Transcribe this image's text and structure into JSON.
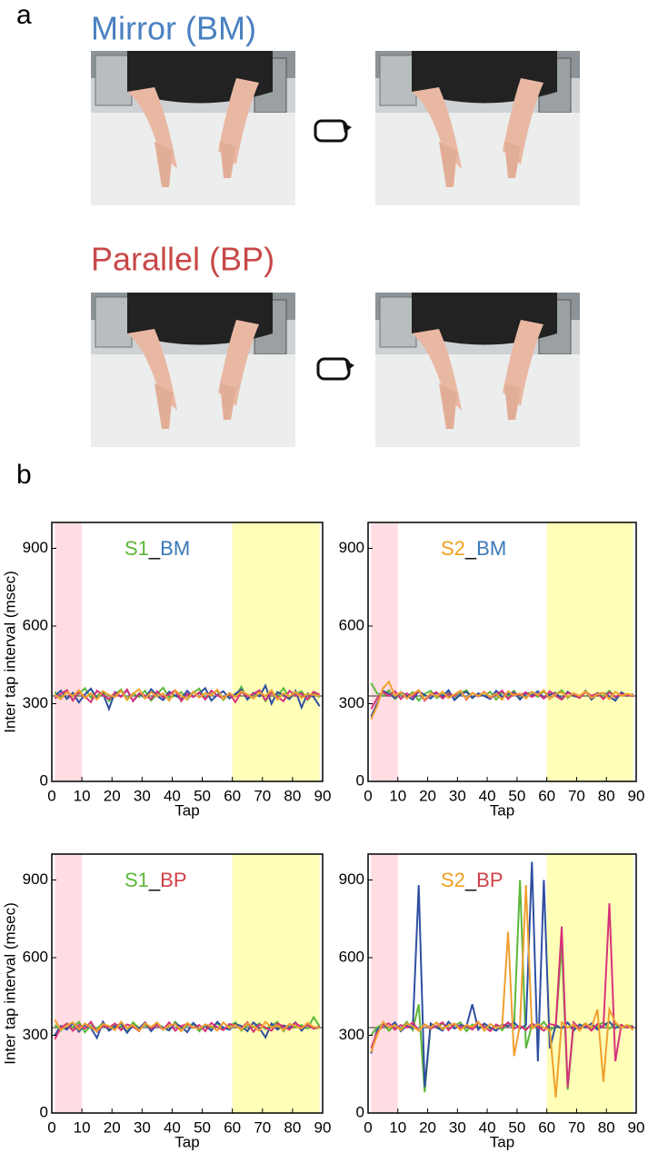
{
  "panel_a": {
    "label": "a",
    "conditions": [
      "Mirror (BM)",
      "Parallel (BP)"
    ]
  },
  "panel_b": {
    "label": "b"
  },
  "chart_data": [
    {
      "type": "line",
      "title": [
        {
          "text": "S1",
          "color": "#5cb83a"
        },
        {
          "text": "_",
          "color": "#000000"
        },
        {
          "text": "BM",
          "color": "#3a78b8"
        }
      ],
      "xlabel": "Tap",
      "ylabel": "Inter tap interval (msec)",
      "xlim": [
        0,
        90
      ],
      "xticks": [
        0,
        10,
        20,
        30,
        40,
        50,
        60,
        70,
        80,
        90
      ],
      "ylim": [
        0,
        1000
      ],
      "yticks": [
        0,
        300,
        600,
        900
      ],
      "ref_line": 330,
      "bands": [
        {
          "from": 1,
          "to": 10,
          "color": "#ffdde2"
        },
        {
          "from": 60,
          "to": 89,
          "color": "#ffffb8"
        }
      ],
      "x": [
        1,
        3,
        5,
        7,
        9,
        11,
        13,
        15,
        17,
        19,
        21,
        23,
        25,
        27,
        29,
        31,
        33,
        35,
        37,
        39,
        41,
        43,
        45,
        47,
        49,
        51,
        53,
        55,
        57,
        59,
        61,
        63,
        65,
        67,
        69,
        71,
        73,
        75,
        77,
        79,
        81,
        83,
        85,
        87,
        89
      ],
      "series": [
        {
          "color": "#5cb83a",
          "values": [
            345,
            320,
            352,
            315,
            338,
            360,
            322,
            330,
            348,
            310,
            335,
            355,
            318,
            340,
            326,
            350,
            312,
            338,
            362,
            324,
            330,
            345,
            316,
            342,
            358,
            320,
            336,
            350,
            314,
            340,
            328,
            365,
            318,
            335,
            352,
            310,
            344,
            330,
            360,
            322,
            338,
            348,
            315,
            340,
            325
          ]
        },
        {
          "color": "#2f4fa0",
          "values": [
            330,
            350,
            318,
            342,
            305,
            336,
            358,
            320,
            340,
            280,
            345,
            328,
            352,
            310,
            338,
            322,
            356,
            330,
            314,
            346,
            332,
            318,
            350,
            326,
            340,
            360,
            312,
            334,
            348,
            320,
            338,
            355,
            316,
            342,
            328,
            370,
            300,
            345,
            332,
            318,
            350,
            285,
            340,
            326,
            290
          ]
        },
        {
          "color": "#d6337a",
          "values": [
            320,
            338,
            352,
            312,
            345,
            328,
            306,
            350,
            334,
            318,
            342,
            326,
            355,
            310,
            340,
            332,
            318,
            348,
            324,
            336,
            352,
            310,
            338,
            326,
            344,
            316,
            350,
            332,
            320,
            340,
            306,
            346,
            328,
            338,
            352,
            314,
            342,
            326,
            310,
            350,
            330,
            340,
            318,
            346,
            335
          ]
        },
        {
          "color": "#f0a030",
          "values": [
            335,
            318,
            345,
            330,
            352,
            322,
            340,
            316,
            348,
            334,
            326,
            350,
            314,
            338,
            356,
            320,
            344,
            328,
            340,
            312,
            352,
            330,
            318,
            346,
            324,
            340,
            332,
            354,
            318,
            342,
            326,
            348,
            336,
            320,
            344,
            330,
            352,
            316,
            340,
            328,
            346,
            322,
            338,
            334,
            330
          ]
        }
      ]
    },
    {
      "type": "line",
      "title": [
        {
          "text": "S2",
          "color": "#f0a020"
        },
        {
          "text": "_",
          "color": "#000000"
        },
        {
          "text": "BM",
          "color": "#3a78b8"
        }
      ],
      "xlabel": "Tap",
      "xlim": [
        0,
        90
      ],
      "xticks": [
        0,
        10,
        20,
        30,
        40,
        50,
        60,
        70,
        80,
        90
      ],
      "ylim": [
        0,
        1000
      ],
      "yticks": [
        0,
        300,
        600,
        900
      ],
      "ref_line": 330,
      "bands": [
        {
          "from": 1,
          "to": 10,
          "color": "#ffdde2"
        },
        {
          "from": 60,
          "to": 89,
          "color": "#ffffb8"
        }
      ],
      "x": [
        1,
        3,
        5,
        7,
        9,
        11,
        13,
        15,
        17,
        19,
        21,
        23,
        25,
        27,
        29,
        31,
        33,
        35,
        37,
        39,
        41,
        43,
        45,
        47,
        49,
        51,
        53,
        55,
        57,
        59,
        61,
        63,
        65,
        67,
        69,
        71,
        73,
        75,
        77,
        79,
        81,
        83,
        85,
        87,
        89
      ],
      "series": [
        {
          "color": "#5cb83a",
          "values": [
            380,
            340,
            330,
            352,
            318,
            340,
            326,
            345,
            312,
            338,
            350,
            322,
            336,
            344,
            318,
            340,
            352,
            324,
            338,
            330,
            346,
            316,
            342,
            328,
            350,
            320,
            338,
            344,
            326,
            348,
            318,
            336,
            352,
            322,
            340,
            330,
            346,
            318,
            342,
            328,
            350,
            324,
            338,
            330,
            335
          ]
        },
        {
          "color": "#2f4fa0",
          "values": [
            250,
            300,
            350,
            338,
            322,
            345,
            330,
            316,
            348,
            334,
            320,
            342,
            328,
            352,
            314,
            336,
            346,
            322,
            340,
            330,
            318,
            350,
            326,
            338,
            344,
            316,
            340,
            332,
            348,
            322,
            336,
            342,
            318,
            346,
            330,
            324,
            350,
            316,
            338,
            342,
            328,
            312,
            344,
            330,
            336
          ]
        },
        {
          "color": "#d6337a",
          "values": [
            280,
            320,
            345,
            330,
            348,
            318,
            340,
            326,
            352,
            312,
            336,
            344,
            320,
            338,
            330,
            350,
            316,
            342,
            328,
            346,
            322,
            336,
            350,
            318,
            340,
            332,
            344,
            326,
            338,
            320,
            348,
            330,
            316,
            342,
            336,
            322,
            346,
            330,
            340,
            318,
            344,
            326,
            338,
            332,
            330
          ]
        },
        {
          "color": "#f0a030",
          "values": [
            240,
            290,
            360,
            385,
            330,
            345,
            320,
            338,
            352,
            316,
            340,
            328,
            346,
            322,
            336,
            350,
            318,
            342,
            330,
            344,
            326,
            338,
            316,
            348,
            332,
            340,
            320,
            346,
            334,
            352,
            318,
            338,
            344,
            326,
            340,
            330,
            348,
            322,
            336,
            342,
            318,
            346,
            330,
            338,
            332
          ]
        }
      ]
    },
    {
      "type": "line",
      "title": [
        {
          "text": "S1",
          "color": "#5cb83a"
        },
        {
          "text": "_",
          "color": "#000000"
        },
        {
          "text": "BP",
          "color": "#d04048"
        }
      ],
      "xlabel": "Tap",
      "ylabel": "Inter tap interval (msec)",
      "xlim": [
        0,
        90
      ],
      "xticks": [
        0,
        10,
        20,
        30,
        40,
        50,
        60,
        70,
        80,
        90
      ],
      "ylim": [
        0,
        1000
      ],
      "yticks": [
        0,
        300,
        600,
        900
      ],
      "ref_line": 330,
      "bands": [
        {
          "from": 1,
          "to": 10,
          "color": "#ffdde2"
        },
        {
          "from": 60,
          "to": 89,
          "color": "#ffffb8"
        }
      ],
      "x": [
        1,
        3,
        5,
        7,
        9,
        11,
        13,
        15,
        17,
        19,
        21,
        23,
        25,
        27,
        29,
        31,
        33,
        35,
        37,
        39,
        41,
        43,
        45,
        47,
        49,
        51,
        53,
        55,
        57,
        59,
        61,
        63,
        65,
        67,
        69,
        71,
        73,
        75,
        77,
        79,
        81,
        83,
        85,
        87,
        89
      ],
      "series": [
        {
          "color": "#5cb83a",
          "values": [
            340,
            318,
            346,
            330,
            352,
            312,
            338,
            326,
            348,
            320,
            342,
            334,
            316,
            350,
            328,
            340,
            322,
            346,
            330,
            318,
            352,
            326,
            338,
            344,
            316,
            342,
            330,
            348,
            322,
            336,
            350,
            318,
            340,
            332,
            346,
            324,
            338,
            352,
            316,
            344,
            330,
            340,
            326,
            370,
            335
          ]
        },
        {
          "color": "#2f4fa0",
          "values": [
            300,
            336,
            322,
            348,
            314,
            340,
            328,
            290,
            352,
            318,
            334,
            346,
            310,
            338,
            326,
            350,
            316,
            342,
            330,
            320,
            346,
            334,
            312,
            348,
            326,
            340,
            318,
            352,
            330,
            322,
            344,
            336,
            316,
            350,
            328,
            292,
            346,
            322,
            338,
            330,
            350,
            318,
            342,
            326,
            330
          ]
        },
        {
          "color": "#d6337a",
          "values": [
            285,
            330,
            345,
            318,
            340,
            326,
            352,
            314,
            338,
            330,
            346,
            320,
            342,
            334,
            316,
            348,
            326,
            340,
            322,
            350,
            318,
            336,
            344,
            328,
            340,
            316,
            348,
            332,
            320,
            344,
            338,
            326,
            350,
            314,
            342,
            330,
            318,
            346,
            334,
            322,
            348,
            330,
            340,
            326,
            335
          ]
        },
        {
          "color": "#f0a030",
          "values": [
            360,
            320,
            338,
            350,
            322,
            346,
            330,
            316,
            344,
            336,
            320,
            352,
            328,
            340,
            318,
            346,
            332,
            350,
            322,
            338,
            344,
            316,
            348,
            330,
            326,
            342,
            336,
            318,
            350,
            328,
            340,
            322,
            346,
            334,
            318,
            352,
            330,
            338,
            320,
            344,
            336,
            326,
            348,
            332,
            330
          ]
        }
      ]
    },
    {
      "type": "line",
      "title": [
        {
          "text": "S2",
          "color": "#f0a020"
        },
        {
          "text": "_",
          "color": "#000000"
        },
        {
          "text": "BP",
          "color": "#d04048"
        }
      ],
      "xlabel": "Tap",
      "xlim": [
        0,
        90
      ],
      "xticks": [
        0,
        10,
        20,
        30,
        40,
        50,
        60,
        70,
        80,
        90
      ],
      "ylim": [
        0,
        1000
      ],
      "yticks": [
        0,
        300,
        600,
        900
      ],
      "ref_line": 330,
      "bands": [
        {
          "from": 1,
          "to": 10,
          "color": "#ffdde2"
        },
        {
          "from": 60,
          "to": 89,
          "color": "#ffffb8"
        }
      ],
      "x": [
        1,
        3,
        5,
        7,
        9,
        11,
        13,
        15,
        17,
        19,
        21,
        23,
        25,
        27,
        29,
        31,
        33,
        35,
        37,
        39,
        41,
        43,
        45,
        47,
        49,
        51,
        53,
        55,
        57,
        59,
        61,
        63,
        65,
        67,
        69,
        71,
        73,
        75,
        77,
        79,
        81,
        83,
        85,
        87,
        89
      ],
      "series": [
        {
          "color": "#5cb83a",
          "values": [
            300,
            330,
            345,
            318,
            340,
            326,
            352,
            320,
            420,
            80,
            340,
            330,
            346,
            322,
            338,
            350,
            316,
            342,
            330,
            344,
            326,
            338,
            320,
            350,
            330,
            900,
            250,
            340,
            326,
            352,
            318,
            336,
            650,
            90,
            340,
            330,
            346,
            320,
            338,
            350,
            326,
            342,
            330,
            338,
            335
          ]
        },
        {
          "color": "#2f4fa0",
          "values": [
            230,
            320,
            342,
            330,
            350,
            316,
            338,
            328,
            880,
            100,
            346,
            330,
            318,
            352,
            326,
            340,
            334,
            420,
            322,
            346,
            330,
            318,
            342,
            336,
            350,
            326,
            340,
            970,
            200,
            900,
            250,
            340,
            326,
            350,
            318,
            342,
            330,
            346,
            322,
            338,
            352,
            328,
            340,
            330,
            335
          ]
        },
        {
          "color": "#d6337a",
          "values": [
            250,
            310,
            338,
            346,
            322,
            340,
            330,
            350,
            318,
            342,
            326,
            336,
            350,
            320,
            344,
            330,
            338,
            322,
            348,
            334,
            316,
            342,
            330,
            350,
            326,
            338,
            320,
            346,
            332,
            318,
            344,
            338,
            720,
            100,
            350,
            326,
            340,
            318,
            344,
            330,
            810,
            200,
            340,
            330,
            335
          ]
        },
        {
          "color": "#f0a030",
          "values": [
            235,
            300,
            352,
            330,
            340,
            320,
            346,
            334,
            318,
            342,
            330,
            350,
            324,
            338,
            346,
            320,
            340,
            332,
            352,
            318,
            344,
            328,
            336,
            700,
            220,
            340,
            880,
            326,
            344,
            330,
            320,
            60,
            350,
            330,
            342,
            318,
            346,
            330,
            400,
            120,
            400,
            350,
            330,
            340,
            320
          ]
        }
      ]
    }
  ]
}
